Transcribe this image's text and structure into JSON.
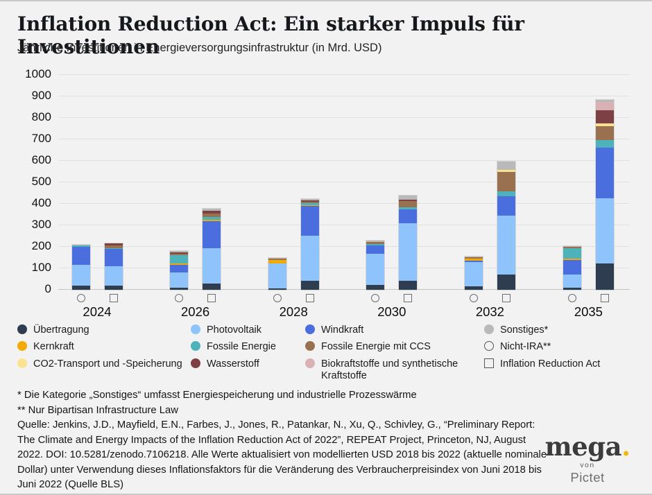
{
  "title": "Inflation Reduction Act: Ein starker Impuls für Investitionen",
  "subtitle": "Jährliche Investitionen in Energieversorgungsinfrastruktur (in Mrd. USD)",
  "accent_gold": "#f2b705",
  "background": "#f2f2f2",
  "chart_data": {
    "type": "bar",
    "stacked": true,
    "title": "Jährliche Investitionen in Energieversorgungsinfrastruktur",
    "unit": "Mrd. USD",
    "ylim": [
      0,
      1000
    ],
    "ytick_interval": 100,
    "grid": true,
    "categories": [
      "2024",
      "2026",
      "2028",
      "2030",
      "2032",
      "2035"
    ],
    "scenarios": [
      {
        "key": "nicht_ira",
        "label": "Nicht-IRA**",
        "marker": "circle"
      },
      {
        "key": "ira",
        "label": "Inflation Reduction Act",
        "marker": "square"
      }
    ],
    "series": [
      {
        "key": "uebertragung",
        "name": "Übertragung",
        "color": "#2e3d4f",
        "nicht_ira": [
          20,
          11,
          6,
          21,
          16,
          11
        ],
        "ira": [
          18,
          30,
          43,
          43,
          70,
          123
        ]
      },
      {
        "key": "photovoltaik",
        "name": "Photovoltaik",
        "color": "#8fc3fb",
        "nicht_ira": [
          95,
          69,
          117,
          145,
          112,
          59
        ],
        "ira": [
          93,
          163,
          210,
          267,
          274,
          302
        ]
      },
      {
        "key": "windkraft",
        "name": "Windkraft",
        "color": "#4a6edd",
        "nicht_ira": [
          85,
          35,
          0,
          41,
          8,
          68
        ],
        "ira": [
          80,
          127,
          138,
          65,
          92,
          236
        ]
      },
      {
        "key": "kernkraft",
        "name": "Kernkraft",
        "color": "#f2ab02",
        "nicht_ira": [
          0,
          6,
          15,
          0,
          9,
          7
        ],
        "ira": [
          0,
          7,
          4,
          0,
          0,
          0
        ]
      },
      {
        "key": "fossile",
        "name": "Fossile Energie",
        "color": "#4eb2ba",
        "nicht_ira": [
          8,
          39,
          0,
          7,
          0,
          48
        ],
        "ira": [
          3,
          13,
          7,
          10,
          21,
          36
        ]
      },
      {
        "key": "fossile_ccs",
        "name": "Fossile Energie mit CCS",
        "color": "#9a7150",
        "nicht_ira": [
          0,
          8,
          8,
          7,
          6,
          8
        ],
        "ira": [
          13,
          15,
          7,
          28,
          91,
          64
        ]
      },
      {
        "key": "co2_transport",
        "name": "CO2-Transport und -Speicherung",
        "color": "#fbe192",
        "nicht_ira": [
          0,
          0,
          0,
          0,
          0,
          0
        ],
        "ira": [
          0,
          0,
          0,
          0,
          11,
          13
        ]
      },
      {
        "key": "wasserstoff",
        "name": "Wasserstoff",
        "color": "#7d4045",
        "nicht_ira": [
          0,
          5,
          0,
          0,
          0,
          0
        ],
        "ira": [
          8,
          14,
          6,
          6,
          0,
          62
        ]
      },
      {
        "key": "biokraft",
        "name": "Biokraftstoffe und synthetische Kraftstoffe",
        "color": "#d9b0b3",
        "nicht_ira": [
          0,
          0,
          0,
          0,
          0,
          0
        ],
        "ira": [
          0,
          0,
          0,
          0,
          0,
          37
        ]
      },
      {
        "key": "sonstiges",
        "name": "Sonstiges",
        "color": "#b9b9b9",
        "nicht_ira": [
          2,
          7,
          4,
          7,
          5,
          3
        ],
        "ira": [
          0,
          9,
          7,
          21,
          38,
          11
        ]
      }
    ],
    "totals": {
      "nicht_ira": [
        210,
        180,
        150,
        228,
        156,
        204
      ],
      "ira": [
        215,
        378,
        422,
        440,
        597,
        884
      ]
    },
    "legend_position": "bottom"
  },
  "legend": {
    "columns": [
      [
        {
          "swatch": "dot",
          "color": "#2e3d4f",
          "label": "Übertragung"
        },
        {
          "swatch": "dot",
          "color": "#f2ab02",
          "label": "Kernkraft"
        },
        {
          "swatch": "dot",
          "color": "#fbe192",
          "label": "CO2-Transport und -Speicherung"
        }
      ],
      [
        {
          "swatch": "dot",
          "color": "#8fc3fb",
          "label": "Photovoltaik"
        },
        {
          "swatch": "dot",
          "color": "#4eb2ba",
          "label": "Fossile Energie"
        },
        {
          "swatch": "dot",
          "color": "#7d4045",
          "label": "Wasserstoff"
        }
      ],
      [
        {
          "swatch": "dot",
          "color": "#4a6edd",
          "label": "Windkraft"
        },
        {
          "swatch": "dot",
          "color": "#9a7150",
          "label": "Fossile Energie mit CCS"
        },
        {
          "swatch": "dot",
          "color": "#d9b0b3",
          "label": "Biokraftstoffe und synthetische Kraftstoffe"
        }
      ],
      [
        {
          "swatch": "dot",
          "color": "#b9b9b9",
          "label": "Sonstiges*"
        },
        {
          "swatch": "circle-outline",
          "color": "",
          "label": "Nicht-IRA**"
        },
        {
          "swatch": "square-outline",
          "color": "",
          "label": "Inflation Reduction Act"
        }
      ]
    ]
  },
  "footnotes": {
    "fn1": "* Die Kategorie „Sonstiges“ umfasst Energiespeicherung und industrielle Prozesswärme",
    "fn2": "** Nur Bipartisan Infrastructure Law",
    "source": "Quelle: Jenkins, J.D., Mayfield, E.N., Farbes, J., Jones, R., Patankar, N., Xu, Q., Schivley, G., “Preliminary Report: The Climate and Energy Impacts of the Inflation Reduction Act of 2022”, REPEAT Project, Princeton, NJ, August 2022. DOI: 10.5281/zenodo.7106218. Alle Werte aktualisiert von modellierten USD 2018 bis 2022 (aktuelle nominale Dollar) unter Verwendung dieses Inflationsfaktors für die Veränderung des Verbraucherpreisindex von Juni 2018 bis Juni 2022 (Quelle BLS)"
  },
  "logo": {
    "brand": "mega",
    "dot": ".",
    "von": "von",
    "company": "Pictet"
  }
}
